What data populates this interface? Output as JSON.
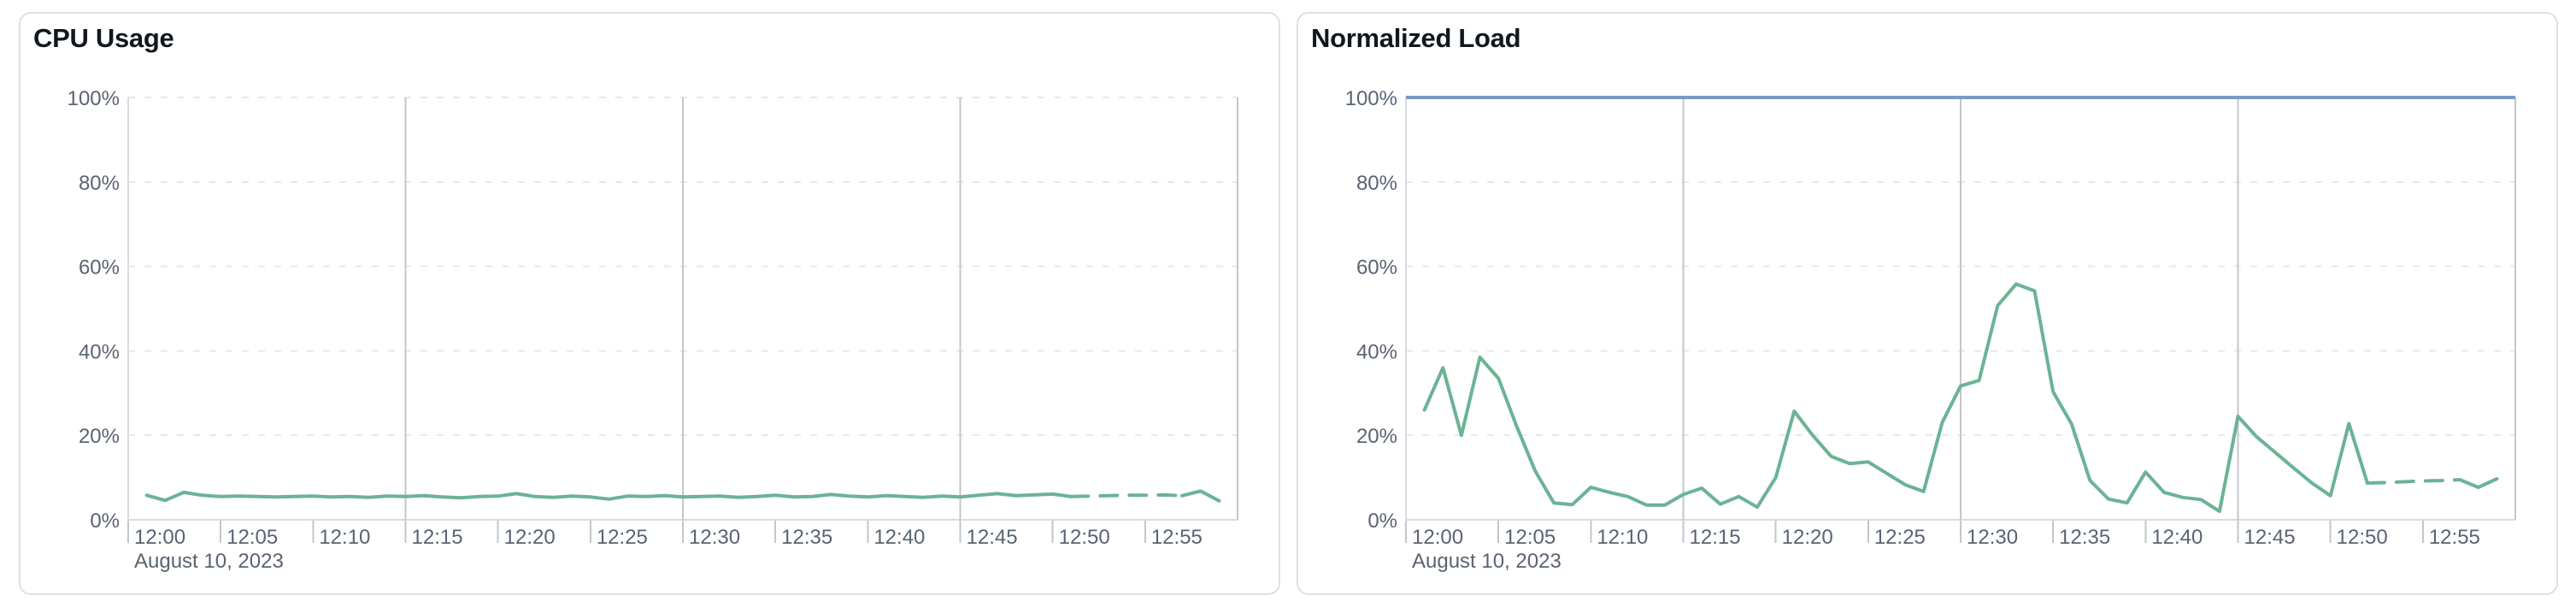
{
  "page": {
    "background_color": "#ffffff"
  },
  "colors": {
    "series_green": "#6bb394",
    "limit_blue": "#7b9ac3",
    "axis_text": "#5a6372",
    "title_text": "#12161d",
    "card_border": "#d9e1ea"
  },
  "chart_data": [
    {
      "type": "line",
      "title": "CPU Usage",
      "x_tick_labels": [
        "12:00",
        "12:05",
        "12:10",
        "12:15",
        "12:20",
        "12:25",
        "12:30",
        "12:35",
        "12:40",
        "12:45",
        "12:50",
        "12:55"
      ],
      "x_tick_interval_minutes": 5,
      "x_axis_secondary_label": "August 10, 2023",
      "x_range_minutes": [
        0,
        60
      ],
      "y_tick_labels": [
        "0%",
        "20%",
        "40%",
        "60%",
        "80%",
        "100%"
      ],
      "y_tick_values": [
        0,
        20,
        40,
        60,
        80,
        100
      ],
      "ylim": [
        0,
        100
      ],
      "vertical_gridline_minutes": [
        15,
        30,
        45,
        60
      ],
      "grid": "horizontal-dashed",
      "legend": "none",
      "series": [
        {
          "name": "cpu-usage",
          "color": "#6bb394",
          "start_minute": 1,
          "interval_minutes": 1,
          "dashed_forecast_from_index": 50,
          "dashed_forecast_to_index": 56,
          "values": [
            5.8,
            4.6,
            6.5,
            5.8,
            5.5,
            5.6,
            5.5,
            5.4,
            5.5,
            5.6,
            5.4,
            5.5,
            5.3,
            5.6,
            5.5,
            5.7,
            5.4,
            5.2,
            5.5,
            5.6,
            6.2,
            5.5,
            5.3,
            5.6,
            5.4,
            4.9,
            5.6,
            5.5,
            5.7,
            5.4,
            5.5,
            5.6,
            5.3,
            5.5,
            5.8,
            5.4,
            5.5,
            6.0,
            5.6,
            5.4,
            5.7,
            5.5,
            5.3,
            5.6,
            5.4,
            5.8,
            6.2,
            5.7,
            5.9,
            6.1,
            5.5,
            5.6,
            5.7,
            5.8,
            5.8,
            5.9,
            5.7,
            6.8,
            4.5
          ]
        }
      ]
    },
    {
      "type": "line",
      "title": "Normalized Load",
      "x_tick_labels": [
        "12:00",
        "12:05",
        "12:10",
        "12:15",
        "12:20",
        "12:25",
        "12:30",
        "12:35",
        "12:40",
        "12:45",
        "12:50",
        "12:55"
      ],
      "x_tick_interval_minutes": 5,
      "x_axis_secondary_label": "August 10, 2023",
      "x_range_minutes": [
        0,
        60
      ],
      "y_tick_labels": [
        "0%",
        "20%",
        "40%",
        "60%",
        "80%",
        "100%"
      ],
      "y_tick_values": [
        0,
        20,
        40,
        60,
        80,
        100
      ],
      "ylim": [
        0,
        100
      ],
      "vertical_gridline_minutes": [
        15,
        30,
        45,
        60
      ],
      "grid": "horizontal-dashed",
      "legend": "none",
      "series": [
        {
          "name": "normalized-load",
          "color": "#6bb394",
          "start_minute": 1,
          "interval_minutes": 1,
          "dashed_forecast_from_index": 51,
          "dashed_forecast_to_index": 56,
          "values": [
            26,
            36,
            20,
            38.5,
            33.5,
            22,
            11.5,
            4,
            3.6,
            7.7,
            6.5,
            5.5,
            3.5,
            3.5,
            6,
            7.5,
            3.7,
            5.5,
            3,
            10,
            25.7,
            20,
            15,
            13.3,
            13.7,
            11,
            8.3,
            6.7,
            23,
            31.7,
            33,
            50.7,
            55.8,
            54.2,
            30.3,
            22.7,
            9.3,
            4.9,
            4,
            11.3,
            6.5,
            5.3,
            4.8,
            2,
            24.5,
            19.7,
            16,
            12.3,
            8.7,
            5.7,
            22.8,
            8.7,
            8.8,
            9,
            9.2,
            9.3,
            9.5,
            7.7,
            9.7
          ]
        },
        {
          "name": "limit",
          "type": "constant",
          "color": "#7b9ac3",
          "value": 100
        }
      ]
    }
  ]
}
